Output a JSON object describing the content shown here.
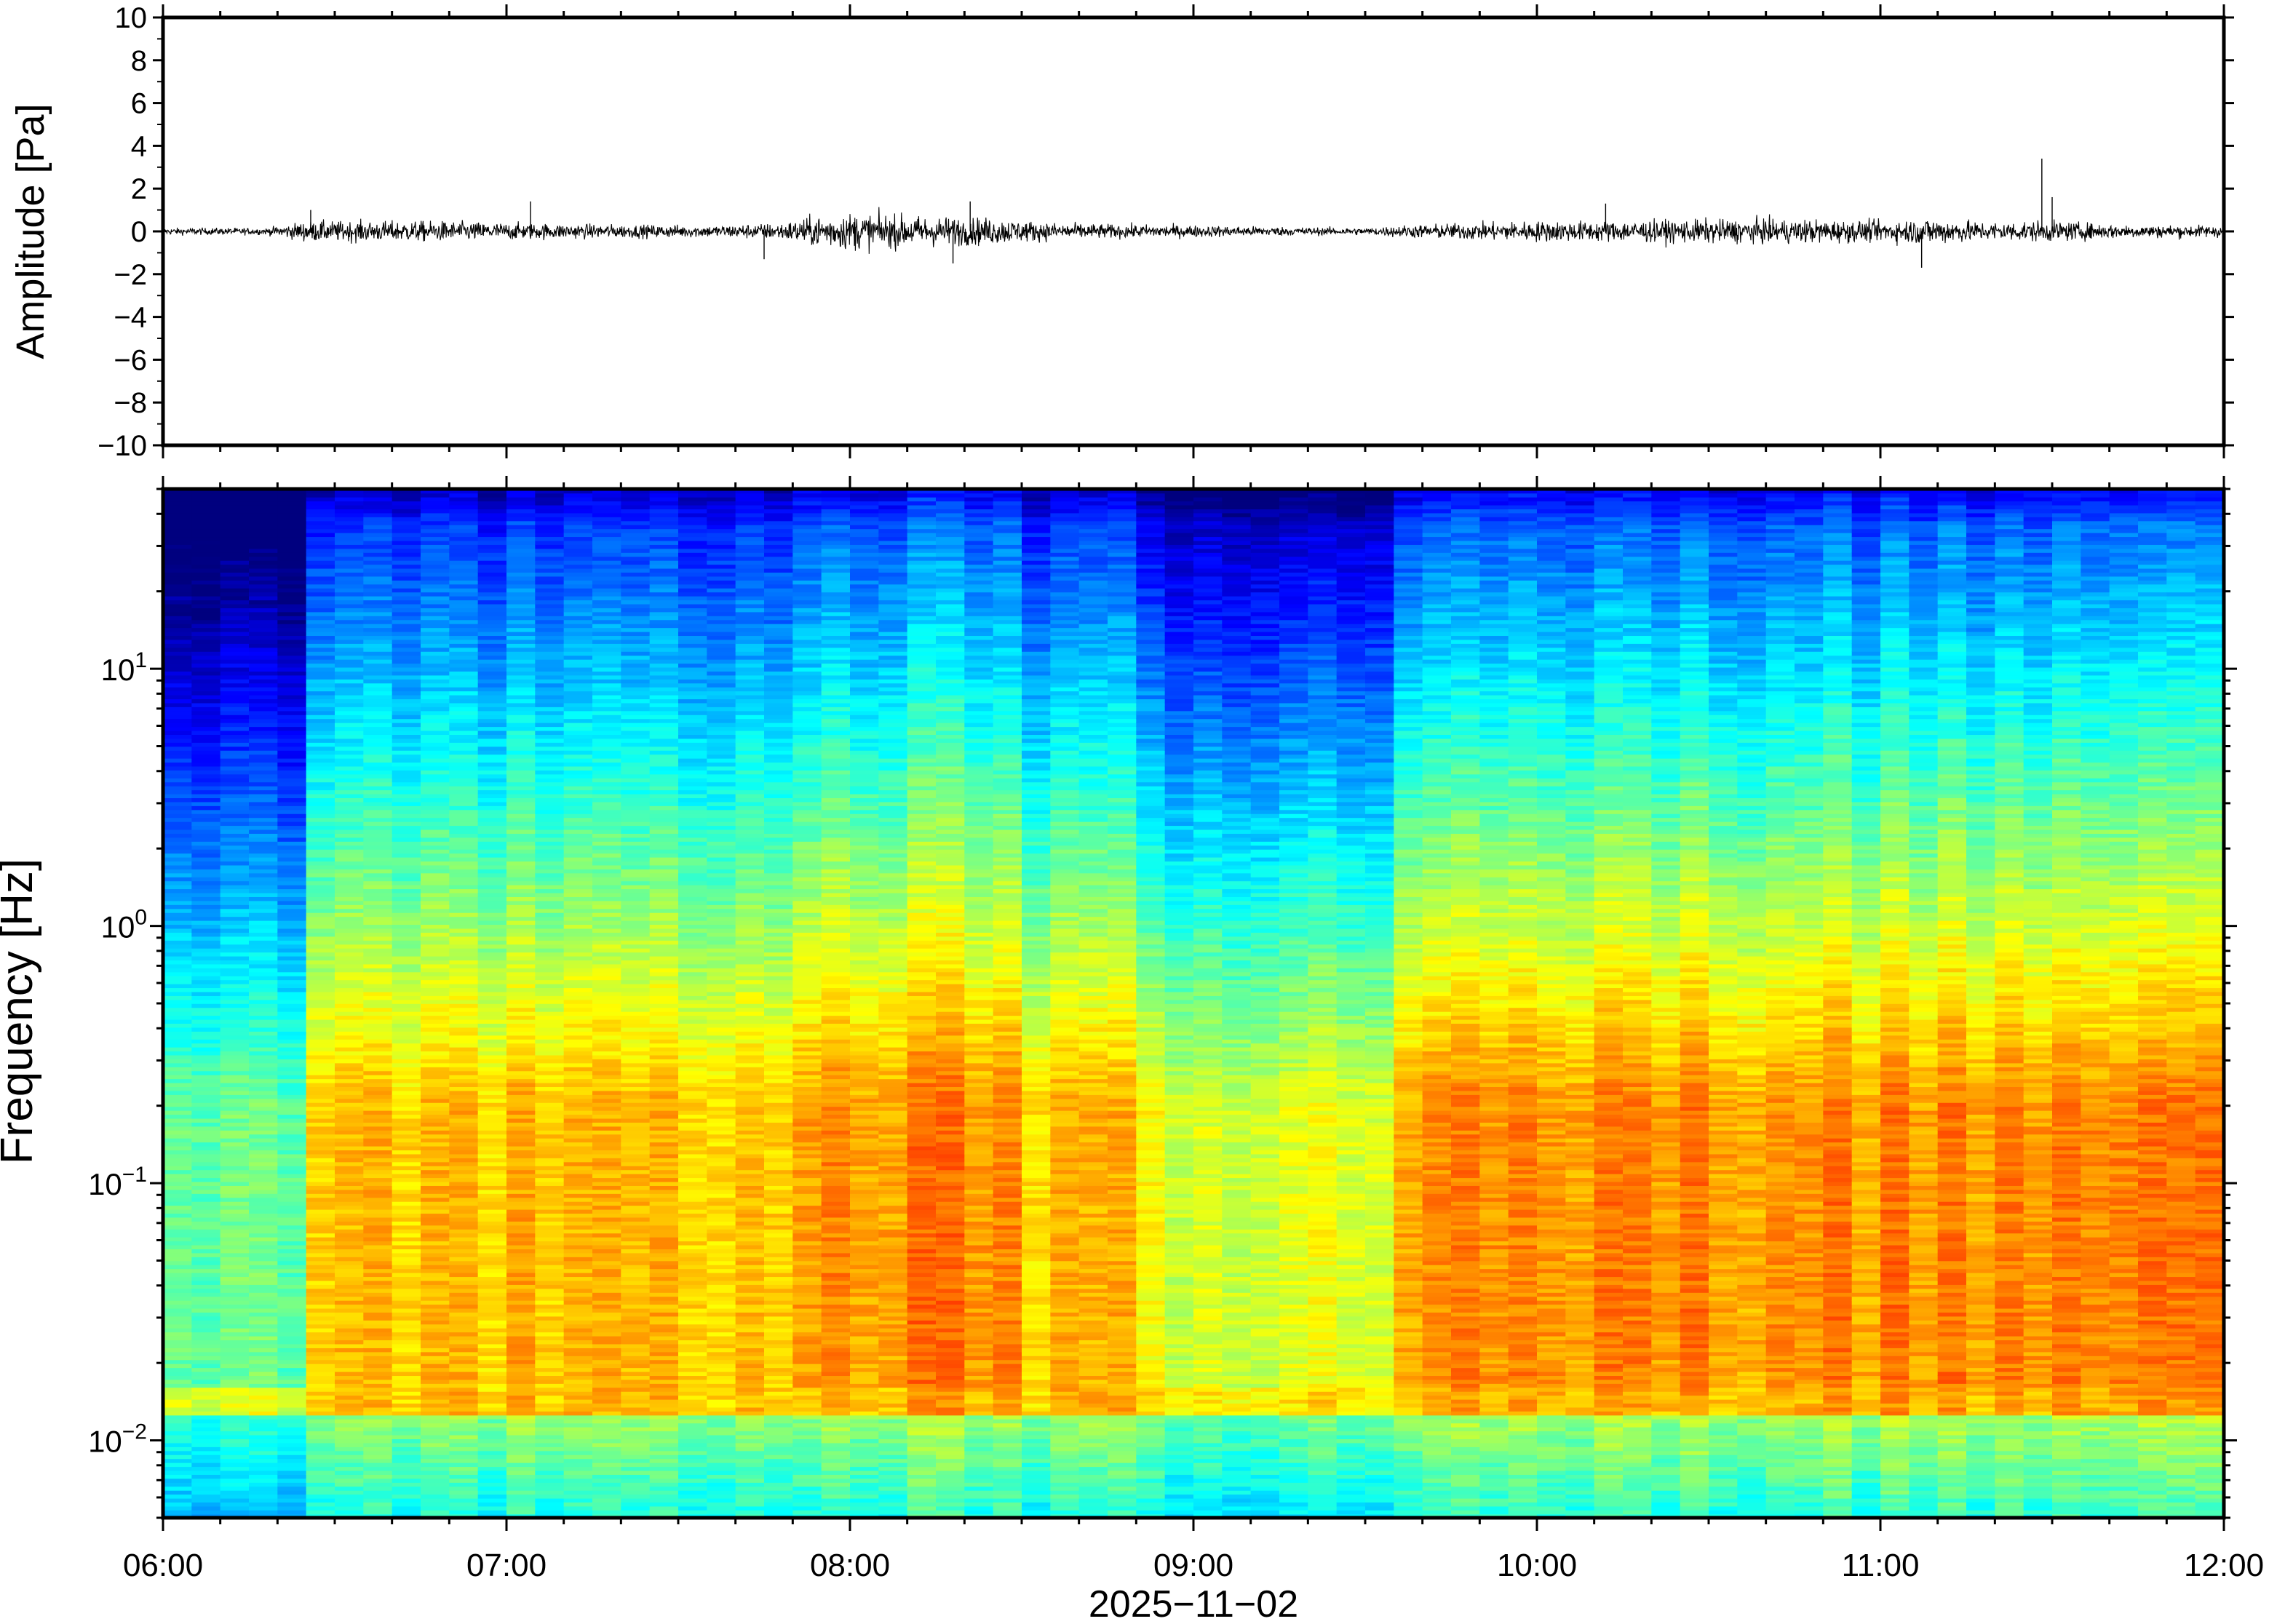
{
  "chart_data": [
    {
      "type": "line",
      "ylabel": "Amplitude [Pa]",
      "ylim": [
        -10,
        10
      ],
      "yticks": [
        "10",
        "8",
        "6",
        "4",
        "2",
        "0",
        "−2",
        "−4",
        "−6",
        "−8",
        "−10"
      ],
      "ytick_values": [
        10,
        8,
        6,
        4,
        2,
        0,
        -2,
        -4,
        -6,
        -8,
        -10
      ],
      "x_range": [
        "06:00",
        "12:00"
      ],
      "line_color": "#000000",
      "envelope": {
        "comment_free": true,
        "time_hours": [
          6.0,
          6.3,
          6.42,
          6.6,
          6.8,
          7.0,
          7.3,
          7.6,
          7.8,
          7.9,
          8.0,
          8.2,
          8.4,
          8.6,
          8.8,
          9.0,
          9.3,
          9.5,
          9.6,
          9.8,
          10.0,
          10.2,
          10.5,
          10.8,
          11.0,
          11.15,
          11.3,
          11.45,
          11.5,
          11.7,
          12.0
        ],
        "amplitude_pa": [
          0.2,
          0.2,
          0.6,
          0.6,
          0.6,
          0.5,
          0.4,
          0.35,
          0.5,
          0.9,
          1.1,
          0.9,
          0.8,
          0.5,
          0.4,
          0.35,
          0.25,
          0.2,
          0.35,
          0.5,
          0.6,
          0.6,
          0.7,
          0.7,
          0.6,
          0.8,
          0.55,
          0.6,
          0.6,
          0.4,
          0.35
        ]
      },
      "spikes": [
        {
          "time_hours": 6.43,
          "amplitude_pa": 1.0
        },
        {
          "time_hours": 7.07,
          "amplitude_pa": 1.4
        },
        {
          "time_hours": 7.75,
          "amplitude_pa": -1.3
        },
        {
          "time_hours": 8.35,
          "amplitude_pa": 1.4
        },
        {
          "time_hours": 8.3,
          "amplitude_pa": -1.5
        },
        {
          "time_hours": 10.2,
          "amplitude_pa": 1.3
        },
        {
          "time_hours": 11.12,
          "amplitude_pa": -1.7
        },
        {
          "time_hours": 11.47,
          "amplitude_pa": 3.4
        },
        {
          "time_hours": 11.5,
          "amplitude_pa": 1.6
        }
      ]
    },
    {
      "type": "heatmap",
      "ylabel": "Frequency [Hz]",
      "yscale": "log",
      "ylim": [
        0.005,
        50
      ],
      "yticks": [
        {
          "value": 0.01,
          "base": "10",
          "exp": "−2"
        },
        {
          "value": 0.1,
          "base": "10",
          "exp": "−1"
        },
        {
          "value": 1,
          "base": "10",
          "exp": "0"
        },
        {
          "value": 10,
          "base": "10",
          "exp": "1"
        }
      ],
      "xlabel": "2025−11−02",
      "xticks": [
        "06:00",
        "07:00",
        "08:00",
        "09:00",
        "10:00",
        "11:00",
        "12:00"
      ],
      "xtick_hours": [
        6,
        7,
        8,
        9,
        10,
        11,
        12
      ],
      "colormap": "jet",
      "colors": [
        "#00007f",
        "#0000ff",
        "#007fff",
        "#00ffff",
        "#7fff7f",
        "#ffff00",
        "#ff7f00",
        "#ff0000"
      ],
      "n_time_bins": 72,
      "time_hours_quiet": [
        6.0,
        6.42
      ],
      "time_hours_quiet2": [
        8.85,
        9.6
      ]
    }
  ]
}
